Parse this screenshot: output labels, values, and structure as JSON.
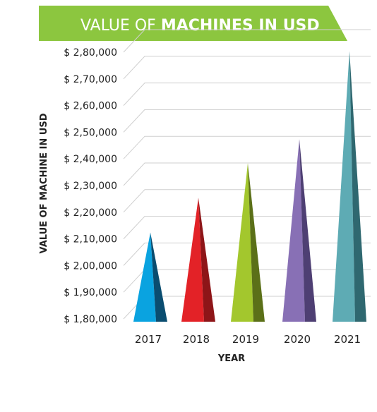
{
  "chart_data": {
    "type": "bar",
    "title_parts": [
      "VALUE OF ",
      "MACHINES IN USD"
    ],
    "xlabel": "YEAR",
    "ylabel": "VALUE OF MACHINE IN USD",
    "categories": [
      "2017",
      "2018",
      "2019",
      "2020",
      "2021"
    ],
    "values": [
      205000,
      218000,
      231000,
      240000,
      273000
    ],
    "ylim": [
      180000,
      280000
    ],
    "yticks": [
      180000,
      190000,
      200000,
      210000,
      220000,
      230000,
      240000,
      250000,
      260000,
      270000,
      280000
    ],
    "ytick_labels": [
      "$ 1,80,000",
      "$ 1,90,000",
      "$ 2,00,000",
      "$ 2,10,000",
      "$ 2,20,000",
      "$ 2,30,000",
      "$ 2,40,000",
      "$ 2,50,000",
      "$ 2,60,000",
      "$ 2,70,000",
      "$ 2,80,000"
    ],
    "grid": true,
    "colors": [
      "#0aa3e0",
      "#e32227",
      "#a3c72d",
      "#8870b5",
      "#5eabb4"
    ],
    "shade_colors": [
      "#0a4d70",
      "#8e1518",
      "#5b7018",
      "#4e3f73",
      "#2f6870"
    ],
    "banner_color": "#8cc63f"
  }
}
